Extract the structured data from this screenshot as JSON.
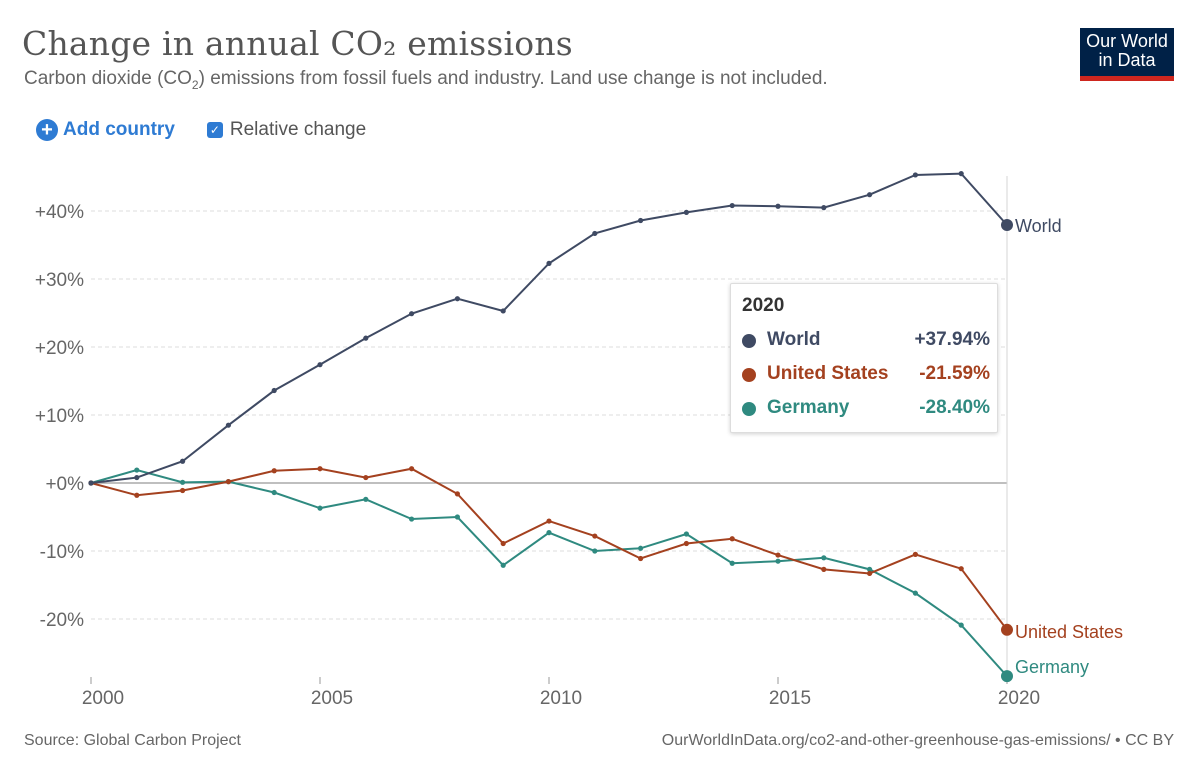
{
  "header": {
    "title": "Change in annual CO₂ emissions",
    "subtitle_pre": "Carbon dioxide (CO",
    "subtitle_sub": "2",
    "subtitle_post": ") emissions from fossil fuels and industry. Land use change is not included.",
    "logo_line1": "Our World",
    "logo_line2": "in Data"
  },
  "controls": {
    "add_country_label": "Add country",
    "relative_change_label": "Relative change",
    "relative_change_checked": true
  },
  "colors": {
    "world": "#3f4a63",
    "united_states": "#a4411f",
    "germany": "#2f8a80",
    "grid": "#dddddd",
    "zero_line": "#999999"
  },
  "chart_data": {
    "type": "line",
    "title": "Change in annual CO₂ emissions",
    "xlabel": "",
    "ylabel": "",
    "x": [
      2000,
      2001,
      2002,
      2003,
      2004,
      2005,
      2006,
      2007,
      2008,
      2009,
      2010,
      2011,
      2012,
      2013,
      2014,
      2015,
      2016,
      2017,
      2018,
      2019,
      2020
    ],
    "xlim": [
      2000,
      2020
    ],
    "ylim": [
      -30,
      48
    ],
    "y_ticks": [
      40,
      30,
      20,
      10,
      0,
      -10,
      -20
    ],
    "y_tick_labels": [
      "+40%",
      "+30%",
      "+20%",
      "+10%",
      "+0%",
      "-10%",
      "-20%"
    ],
    "x_ticks": [
      2000,
      2005,
      2010,
      2015,
      2020
    ],
    "x_tick_labels": [
      "2000",
      "2005",
      "2010",
      "2015",
      "2020"
    ],
    "grid": true,
    "series": [
      {
        "name": "World",
        "color_key": "world",
        "values": [
          0,
          0.8,
          3.2,
          8.5,
          13.6,
          17.4,
          21.3,
          24.9,
          27.1,
          25.3,
          32.3,
          36.7,
          38.6,
          39.8,
          40.8,
          40.7,
          40.5,
          42.4,
          45.3,
          45.5,
          37.94
        ]
      },
      {
        "name": "United States",
        "color_key": "united_states",
        "values": [
          0,
          -1.8,
          -1.1,
          0.2,
          1.8,
          2.1,
          0.8,
          2.1,
          -1.6,
          -8.9,
          -5.6,
          -7.8,
          -11.1,
          -8.9,
          -8.2,
          -10.6,
          -12.7,
          -13.3,
          -10.5,
          -12.6,
          -21.59
        ]
      },
      {
        "name": "Germany",
        "color_key": "germany",
        "values": [
          0,
          1.9,
          0.1,
          0.2,
          -1.4,
          -3.7,
          -2.4,
          -5.3,
          -5.0,
          -12.1,
          -7.3,
          -10.0,
          -9.6,
          -7.5,
          -11.8,
          -11.5,
          -11.0,
          -12.7,
          -16.2,
          -20.9,
          -28.4
        ]
      }
    ],
    "end_labels": [
      "World",
      "United States",
      "Germany"
    ],
    "hover_year": 2020
  },
  "tooltip": {
    "year": "2020",
    "rows": [
      {
        "name": "World",
        "value": "+37.94%",
        "color_key": "world"
      },
      {
        "name": "United States",
        "value": "-21.59%",
        "color_key": "united_states"
      },
      {
        "name": "Germany",
        "value": "-28.40%",
        "color_key": "germany"
      }
    ]
  },
  "footer": {
    "source": "Source: Global Carbon Project",
    "url": "OurWorldInData.org/co2-and-other-greenhouse-gas-emissions/ • CC BY"
  }
}
